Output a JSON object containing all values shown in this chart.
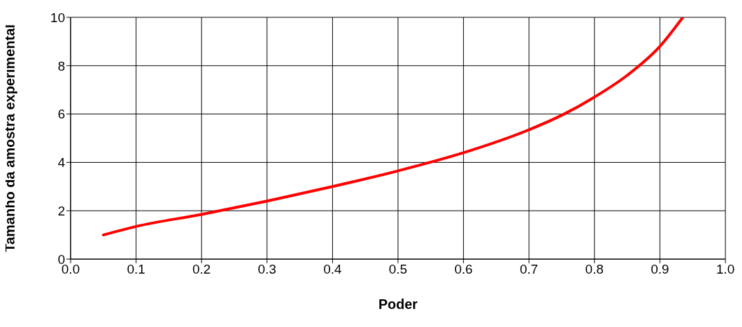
{
  "chart_data": {
    "type": "line",
    "xlabel": "Poder",
    "ylabel": "Tamanho da amostra experimental",
    "x": [
      0.05,
      0.1,
      0.2,
      0.3,
      0.4,
      0.5,
      0.6,
      0.7,
      0.75,
      0.8,
      0.85,
      0.9,
      0.935
    ],
    "series": [
      {
        "color": "#ff0000",
        "values": [
          1.0,
          1.35,
          1.85,
          2.4,
          3.0,
          3.65,
          4.4,
          5.35,
          5.95,
          6.7,
          7.6,
          8.8,
          10
        ]
      }
    ],
    "xlim": [
      0,
      1
    ],
    "xticks": [
      {
        "value": 0,
        "label": "0.0"
      },
      0.1,
      0.2,
      0.3,
      0.4,
      0.5,
      0.6,
      0.7,
      0.8,
      0.9,
      {
        "value": 1,
        "label": "1.0"
      }
    ],
    "ylim": [
      0,
      10
    ],
    "yticks": [
      0,
      2,
      4,
      6,
      8,
      10
    ],
    "grid": true,
    "marker": "none",
    "line_style": "solid"
  }
}
